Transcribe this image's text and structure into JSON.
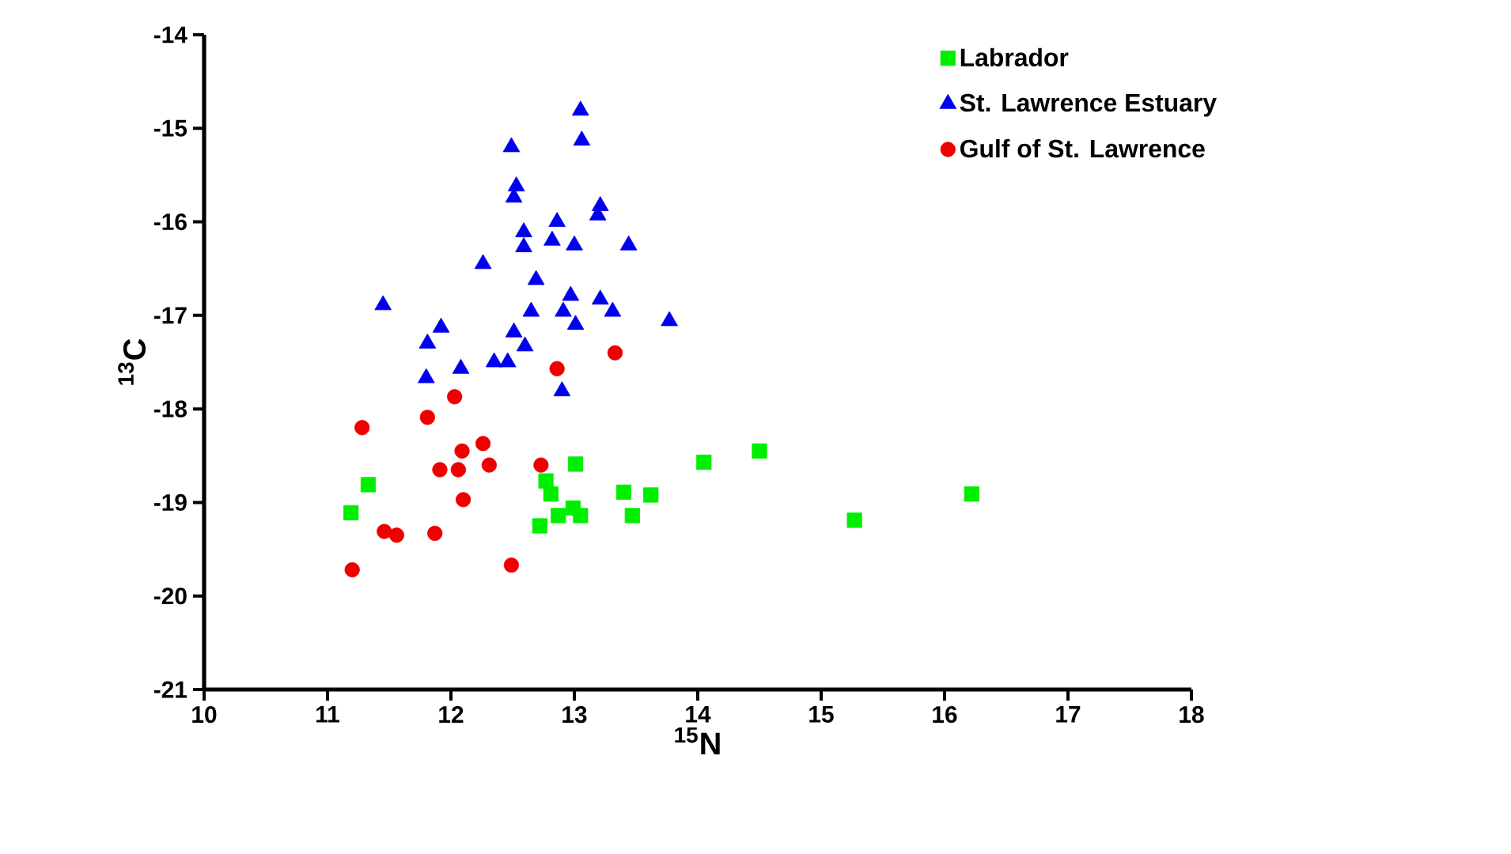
{
  "chart_data": {
    "type": "scatter",
    "xlabel": "$^{15}$N",
    "ylabel": "$^{13}$C",
    "xlim": [
      10,
      18
    ],
    "ylim": [
      -21,
      -14
    ],
    "xticks": [
      10,
      11,
      12,
      13,
      14,
      15,
      16,
      17,
      18
    ],
    "yticks": [
      -21,
      -20,
      -19,
      -18,
      -17,
      -16,
      -15,
      -14
    ],
    "legend": "top right",
    "series": [
      {
        "name": "Labrador",
        "color": "#00ee00",
        "marker": "square",
        "x": [
          11.33,
          11.19,
          13.01,
          12.77,
          12.81,
          12.99,
          12.87,
          13.05,
          12.72,
          13.4,
          13.62,
          13.47,
          14.05,
          14.5,
          15.27,
          16.22
        ],
        "values": [
          -18.81,
          -19.11,
          -18.59,
          -18.77,
          -18.91,
          -19.06,
          -19.14,
          -19.14,
          -19.25,
          -18.89,
          -18.92,
          -19.14,
          -18.57,
          -18.45,
          -19.19,
          -18.91
        ]
      },
      {
        "name": "St. Lawrence Estuary",
        "color": "#0000ee",
        "marker": "triangle",
        "x": [
          13.05,
          13.06,
          12.49,
          12.53,
          12.51,
          13.21,
          13.19,
          12.59,
          12.86,
          12.59,
          12.82,
          13.0,
          13.44,
          12.26,
          11.45,
          12.69,
          12.97,
          13.21,
          13.31,
          12.91,
          12.65,
          13.01,
          13.77,
          11.92,
          12.51,
          11.81,
          12.6,
          12.08,
          12.35,
          12.46,
          11.8,
          12.9
        ],
        "values": [
          -14.81,
          -15.13,
          -15.2,
          -15.62,
          -15.74,
          -15.83,
          -15.93,
          -16.11,
          -16.0,
          -16.27,
          -16.2,
          -16.25,
          -16.25,
          -16.45,
          -16.89,
          -16.62,
          -16.79,
          -16.83,
          -16.96,
          -16.96,
          -16.96,
          -17.1,
          -17.06,
          -17.13,
          -17.18,
          -17.3,
          -17.33,
          -17.57,
          -17.5,
          -17.5,
          -17.67,
          -17.81
        ]
      },
      {
        "name": "Gulf of St. Lawrence",
        "color": "#ee0000",
        "marker": "circle",
        "x": [
          13.33,
          12.86,
          12.03,
          11.81,
          11.28,
          12.26,
          12.09,
          11.91,
          12.06,
          12.31,
          12.73,
          12.1,
          11.46,
          11.56,
          11.87,
          11.2,
          12.49
        ],
        "values": [
          -17.4,
          -17.57,
          -17.87,
          -18.09,
          -18.2,
          -18.37,
          -18.45,
          -18.65,
          -18.65,
          -18.6,
          -18.6,
          -18.97,
          -19.31,
          -19.35,
          -19.33,
          -19.72,
          -19.67
        ]
      }
    ]
  }
}
